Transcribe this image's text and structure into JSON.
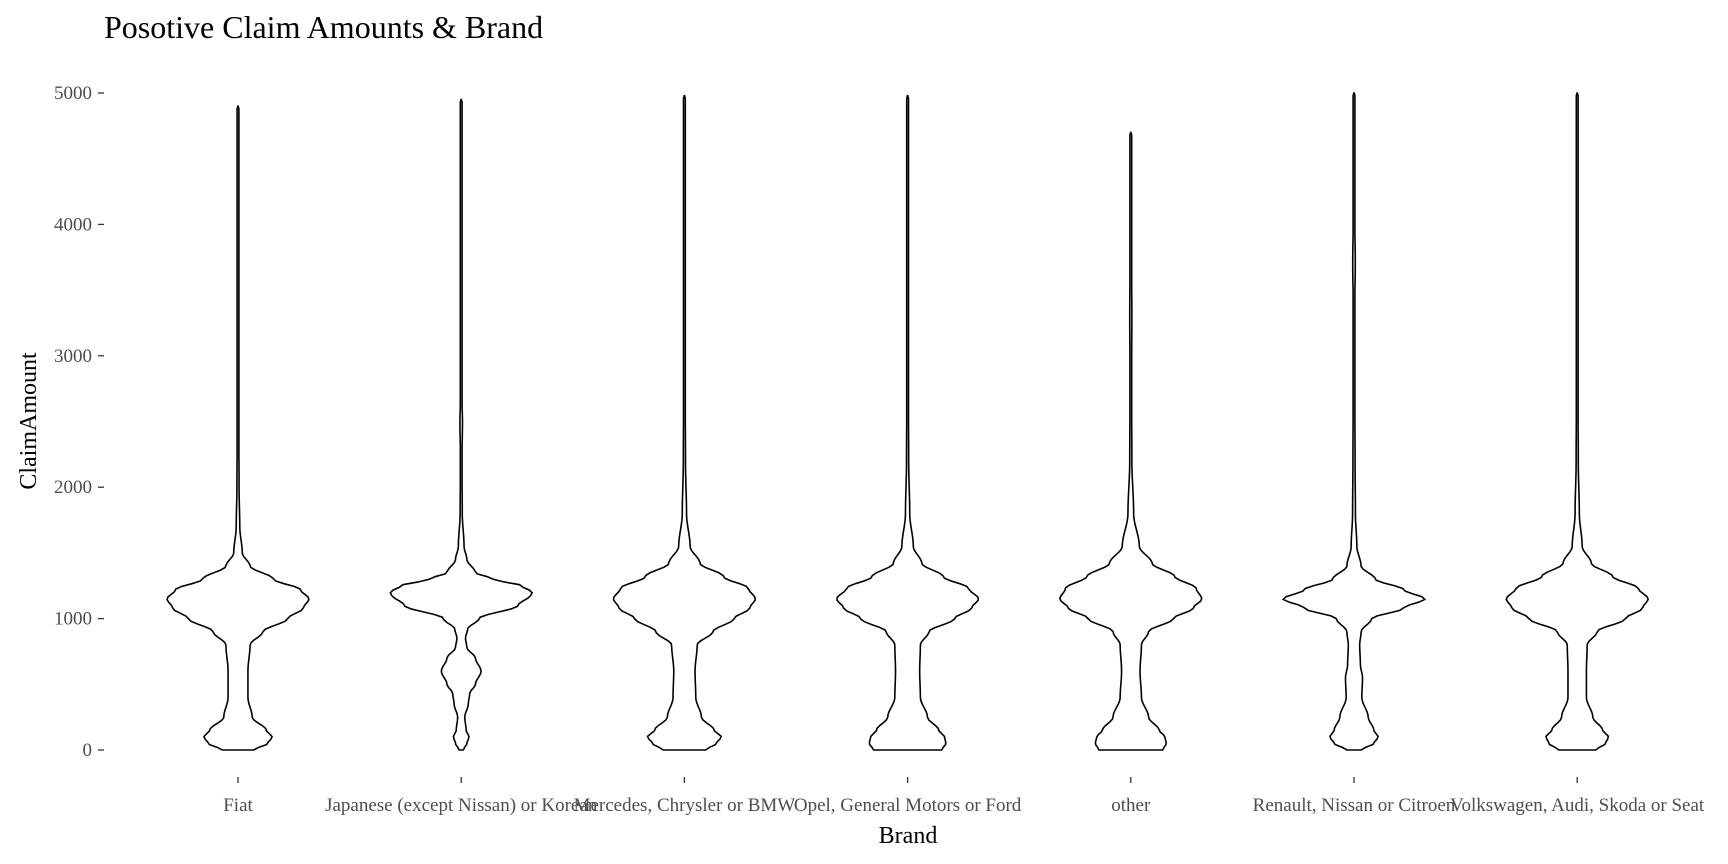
{
  "chart_data": {
    "type": "violin",
    "title": "Posotive Claim Amounts & Brand",
    "xlabel": "Brand",
    "ylabel": "ClaimAmount",
    "ylim": [
      0,
      5000
    ],
    "yticks": [
      0,
      1000,
      2000,
      3000,
      4000,
      5000
    ],
    "grid": false,
    "categories": [
      "Fiat",
      "Japanese (except Nissan) or Korean",
      "Mercedes, Chrysler or BMW",
      "Opel, General Motors or Ford",
      "other",
      "Renault, Nissan or Citroen",
      "Volkswagen, Audi, Skoda or Seat"
    ],
    "series": [
      {
        "category": "Fiat",
        "min": 0,
        "max": 4900,
        "mode": 1150,
        "profile": [
          [
            0,
            0.22
          ],
          [
            50,
            0.42
          ],
          [
            100,
            0.48
          ],
          [
            150,
            0.4
          ],
          [
            250,
            0.2
          ],
          [
            400,
            0.14
          ],
          [
            600,
            0.14
          ],
          [
            800,
            0.17
          ],
          [
            900,
            0.35
          ],
          [
            1000,
            0.7
          ],
          [
            1080,
            0.92
          ],
          [
            1150,
            1.0
          ],
          [
            1220,
            0.88
          ],
          [
            1300,
            0.5
          ],
          [
            1400,
            0.17
          ],
          [
            1500,
            0.06
          ],
          [
            1700,
            0.025
          ],
          [
            2000,
            0.015
          ],
          [
            2500,
            0.01
          ],
          [
            3000,
            0.008
          ],
          [
            3300,
            0.012
          ],
          [
            3600,
            0.006
          ],
          [
            4500,
            0.004
          ],
          [
            4900,
            0.002
          ]
        ]
      },
      {
        "category": "Japanese (except Nissan) or Korean",
        "min": 0,
        "max": 4950,
        "mode": 1200,
        "profile": [
          [
            0,
            0.03
          ],
          [
            50,
            0.08
          ],
          [
            100,
            0.11
          ],
          [
            150,
            0.07
          ],
          [
            250,
            0.05
          ],
          [
            350,
            0.1
          ],
          [
            430,
            0.12
          ],
          [
            500,
            0.2
          ],
          [
            600,
            0.28
          ],
          [
            700,
            0.2
          ],
          [
            780,
            0.08
          ],
          [
            850,
            0.06
          ],
          [
            920,
            0.09
          ],
          [
            1000,
            0.25
          ],
          [
            1100,
            0.8
          ],
          [
            1180,
            0.98
          ],
          [
            1200,
            1.0
          ],
          [
            1250,
            0.85
          ],
          [
            1300,
            0.45
          ],
          [
            1350,
            0.2
          ],
          [
            1450,
            0.08
          ],
          [
            1550,
            0.04
          ],
          [
            1800,
            0.015
          ],
          [
            2200,
            0.01
          ],
          [
            2500,
            0.018
          ],
          [
            2700,
            0.008
          ],
          [
            3200,
            0.005
          ],
          [
            3800,
            0.01
          ],
          [
            4300,
            0.01
          ],
          [
            4950,
            0.002
          ]
        ]
      },
      {
        "category": "Mercedes, Chrysler or BMW",
        "min": 0,
        "max": 4980,
        "mode": 1150,
        "profile": [
          [
            0,
            0.3
          ],
          [
            50,
            0.45
          ],
          [
            100,
            0.52
          ],
          [
            150,
            0.42
          ],
          [
            250,
            0.24
          ],
          [
            400,
            0.16
          ],
          [
            600,
            0.15
          ],
          [
            800,
            0.18
          ],
          [
            900,
            0.4
          ],
          [
            1000,
            0.7
          ],
          [
            1080,
            0.92
          ],
          [
            1150,
            1.0
          ],
          [
            1230,
            0.9
          ],
          [
            1320,
            0.55
          ],
          [
            1420,
            0.22
          ],
          [
            1550,
            0.08
          ],
          [
            1800,
            0.03
          ],
          [
            2200,
            0.015
          ],
          [
            2800,
            0.01
          ],
          [
            3400,
            0.007
          ],
          [
            4000,
            0.005
          ],
          [
            4500,
            0.008
          ],
          [
            4980,
            0.002
          ]
        ]
      },
      {
        "category": "Opel, General Motors or Ford",
        "min": 0,
        "max": 4980,
        "mode": 1150,
        "profile": [
          [
            0,
            0.48
          ],
          [
            50,
            0.54
          ],
          [
            100,
            0.52
          ],
          [
            150,
            0.44
          ],
          [
            250,
            0.28
          ],
          [
            400,
            0.18
          ],
          [
            600,
            0.17
          ],
          [
            800,
            0.18
          ],
          [
            900,
            0.3
          ],
          [
            1000,
            0.66
          ],
          [
            1080,
            0.9
          ],
          [
            1150,
            1.0
          ],
          [
            1230,
            0.86
          ],
          [
            1320,
            0.5
          ],
          [
            1420,
            0.2
          ],
          [
            1550,
            0.08
          ],
          [
            1800,
            0.03
          ],
          [
            2200,
            0.015
          ],
          [
            2800,
            0.01
          ],
          [
            3400,
            0.007
          ],
          [
            4000,
            0.005
          ],
          [
            4500,
            0.005
          ],
          [
            4980,
            0.002
          ]
        ]
      },
      {
        "category": "other",
        "min": 0,
        "max": 4700,
        "mode": 1150,
        "profile": [
          [
            0,
            0.45
          ],
          [
            50,
            0.5
          ],
          [
            100,
            0.48
          ],
          [
            150,
            0.4
          ],
          [
            250,
            0.25
          ],
          [
            400,
            0.15
          ],
          [
            600,
            0.13
          ],
          [
            800,
            0.15
          ],
          [
            900,
            0.25
          ],
          [
            1000,
            0.6
          ],
          [
            1080,
            0.88
          ],
          [
            1150,
            1.0
          ],
          [
            1230,
            0.92
          ],
          [
            1320,
            0.62
          ],
          [
            1420,
            0.3
          ],
          [
            1550,
            0.12
          ],
          [
            1800,
            0.04
          ],
          [
            2200,
            0.015
          ],
          [
            2800,
            0.01
          ],
          [
            3300,
            0.015
          ],
          [
            3800,
            0.008
          ],
          [
            4300,
            0.004
          ],
          [
            4700,
            0.002
          ]
        ]
      },
      {
        "category": "Renault, Nissan or Citroen",
        "min": 0,
        "max": 5000,
        "mode": 1150,
        "profile": [
          [
            0,
            0.1
          ],
          [
            50,
            0.28
          ],
          [
            100,
            0.34
          ],
          [
            150,
            0.28
          ],
          [
            250,
            0.2
          ],
          [
            400,
            0.11
          ],
          [
            550,
            0.12
          ],
          [
            650,
            0.09
          ],
          [
            800,
            0.08
          ],
          [
            900,
            0.1
          ],
          [
            1000,
            0.25
          ],
          [
            1080,
            0.7
          ],
          [
            1150,
            1.0
          ],
          [
            1220,
            0.7
          ],
          [
            1300,
            0.3
          ],
          [
            1400,
            0.1
          ],
          [
            1550,
            0.04
          ],
          [
            1800,
            0.02
          ],
          [
            2200,
            0.015
          ],
          [
            2800,
            0.01
          ],
          [
            3300,
            0.008
          ],
          [
            3700,
            0.018
          ],
          [
            4200,
            0.005
          ],
          [
            5000,
            0.002
          ]
        ]
      },
      {
        "category": "Volkswagen, Audi, Skoda or Seat",
        "min": 0,
        "max": 5000,
        "mode": 1150,
        "profile": [
          [
            0,
            0.26
          ],
          [
            50,
            0.4
          ],
          [
            100,
            0.44
          ],
          [
            150,
            0.36
          ],
          [
            250,
            0.22
          ],
          [
            400,
            0.13
          ],
          [
            600,
            0.13
          ],
          [
            800,
            0.14
          ],
          [
            900,
            0.28
          ],
          [
            1000,
            0.68
          ],
          [
            1080,
            0.92
          ],
          [
            1150,
            1.0
          ],
          [
            1230,
            0.86
          ],
          [
            1320,
            0.5
          ],
          [
            1420,
            0.2
          ],
          [
            1550,
            0.07
          ],
          [
            1800,
            0.03
          ],
          [
            2200,
            0.015
          ],
          [
            2800,
            0.01
          ],
          [
            3300,
            0.008
          ],
          [
            4100,
            0.01
          ],
          [
            4500,
            0.005
          ],
          [
            5000,
            0.002
          ]
        ]
      }
    ]
  }
}
